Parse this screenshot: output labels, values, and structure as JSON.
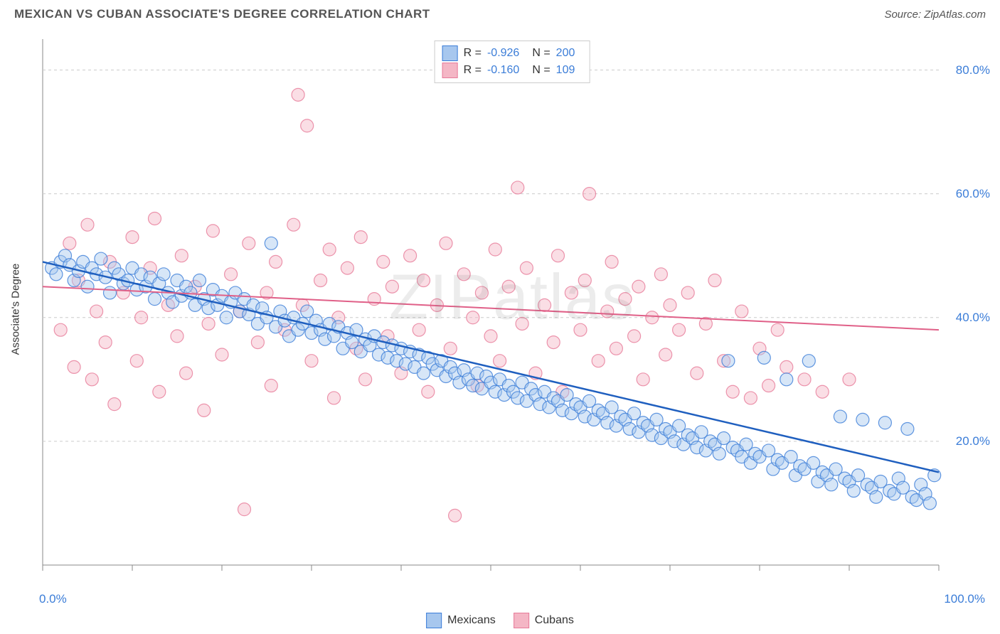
{
  "header": {
    "title": "MEXICAN VS CUBAN ASSOCIATE'S DEGREE CORRELATION CHART",
    "source": "Source: ZipAtlas.com"
  },
  "chart": {
    "type": "scatter",
    "ylabel": "Associate's Degree",
    "watermark": "ZIPatlas",
    "background_color": "#ffffff",
    "grid_color": "#cccccc",
    "axis_color": "#888888",
    "tick_label_color": "#3b7dd8",
    "xlim": [
      0,
      100
    ],
    "ylim": [
      0,
      85
    ],
    "yticks": [
      20,
      40,
      60,
      80
    ],
    "ytick_labels": [
      "20.0%",
      "40.0%",
      "60.0%",
      "80.0%"
    ],
    "xticks": [
      0,
      10,
      20,
      30,
      40,
      50,
      60,
      70,
      80,
      90,
      100
    ],
    "xaxis_labels": {
      "left": "0.0%",
      "right": "100.0%"
    },
    "marker_radius": 9,
    "marker_opacity": 0.45,
    "series": [
      {
        "name": "Mexicans",
        "fill_color": "#a7c7ee",
        "stroke_color": "#3b7dd8",
        "line_color": "#1f5fbf",
        "line_width": 2.5,
        "R": "-0.926",
        "N": "200",
        "trend": {
          "x1": 0,
          "y1": 49,
          "x2": 100,
          "y2": 15
        },
        "points": [
          [
            1,
            48
          ],
          [
            1.5,
            47
          ],
          [
            2,
            49
          ],
          [
            2.5,
            50
          ],
          [
            3,
            48.5
          ],
          [
            3.5,
            46
          ],
          [
            4,
            47.5
          ],
          [
            4.5,
            49
          ],
          [
            5,
            45
          ],
          [
            5.5,
            48
          ],
          [
            6,
            47
          ],
          [
            6.5,
            49.5
          ],
          [
            7,
            46.5
          ],
          [
            7.5,
            44
          ],
          [
            8,
            48
          ],
          [
            8.5,
            47
          ],
          [
            9,
            45.5
          ],
          [
            9.5,
            46
          ],
          [
            10,
            48
          ],
          [
            10.5,
            44.5
          ],
          [
            11,
            47
          ],
          [
            11.5,
            45
          ],
          [
            12,
            46.5
          ],
          [
            12.5,
            43
          ],
          [
            13,
            45.5
          ],
          [
            13.5,
            47
          ],
          [
            14,
            44
          ],
          [
            14.5,
            42.5
          ],
          [
            15,
            46
          ],
          [
            15.5,
            43.5
          ],
          [
            16,
            45
          ],
          [
            16.5,
            44
          ],
          [
            17,
            42
          ],
          [
            17.5,
            46
          ],
          [
            18,
            43
          ],
          [
            18.5,
            41.5
          ],
          [
            19,
            44.5
          ],
          [
            19.5,
            42
          ],
          [
            20,
            43.5
          ],
          [
            20.5,
            40
          ],
          [
            21,
            42.5
          ],
          [
            21.5,
            44
          ],
          [
            22,
            41
          ],
          [
            22.5,
            43
          ],
          [
            23,
            40.5
          ],
          [
            23.5,
            42
          ],
          [
            24,
            39
          ],
          [
            24.5,
            41.5
          ],
          [
            25,
            40
          ],
          [
            25.5,
            52
          ],
          [
            26,
            38.5
          ],
          [
            26.5,
            41
          ],
          [
            27,
            39.5
          ],
          [
            27.5,
            37
          ],
          [
            28,
            40
          ],
          [
            28.5,
            38
          ],
          [
            29,
            39
          ],
          [
            29.5,
            41
          ],
          [
            30,
            37.5
          ],
          [
            30.5,
            39.5
          ],
          [
            31,
            38
          ],
          [
            31.5,
            36.5
          ],
          [
            32,
            39
          ],
          [
            32.5,
            37
          ],
          [
            33,
            38.5
          ],
          [
            33.5,
            35
          ],
          [
            34,
            37.5
          ],
          [
            34.5,
            36
          ],
          [
            35,
            38
          ],
          [
            35.5,
            34.5
          ],
          [
            36,
            36.5
          ],
          [
            36.5,
            35.5
          ],
          [
            37,
            37
          ],
          [
            37.5,
            34
          ],
          [
            38,
            36
          ],
          [
            38.5,
            33.5
          ],
          [
            39,
            35.5
          ],
          [
            39.5,
            33
          ],
          [
            40,
            35
          ],
          [
            40.5,
            32.5
          ],
          [
            41,
            34.5
          ],
          [
            41.5,
            32
          ],
          [
            42,
            34
          ],
          [
            42.5,
            31
          ],
          [
            43,
            33.5
          ],
          [
            43.5,
            32.5
          ],
          [
            44,
            31.5
          ],
          [
            44.5,
            33
          ],
          [
            45,
            30.5
          ],
          [
            45.5,
            32
          ],
          [
            46,
            31
          ],
          [
            46.5,
            29.5
          ],
          [
            47,
            31.5
          ],
          [
            47.5,
            30
          ],
          [
            48,
            29
          ],
          [
            48.5,
            31
          ],
          [
            49,
            28.5
          ],
          [
            49.5,
            30.5
          ],
          [
            50,
            29.5
          ],
          [
            50.5,
            28
          ],
          [
            51,
            30
          ],
          [
            51.5,
            27.5
          ],
          [
            52,
            29
          ],
          [
            52.5,
            28
          ],
          [
            53,
            27
          ],
          [
            53.5,
            29.5
          ],
          [
            54,
            26.5
          ],
          [
            54.5,
            28.5
          ],
          [
            55,
            27.5
          ],
          [
            55.5,
            26
          ],
          [
            56,
            28
          ],
          [
            56.5,
            25.5
          ],
          [
            57,
            27
          ],
          [
            57.5,
            26.5
          ],
          [
            58,
            25
          ],
          [
            58.5,
            27.5
          ],
          [
            59,
            24.5
          ],
          [
            59.5,
            26
          ],
          [
            60,
            25.5
          ],
          [
            60.5,
            24
          ],
          [
            61,
            26.5
          ],
          [
            61.5,
            23.5
          ],
          [
            62,
            25
          ],
          [
            62.5,
            24.5
          ],
          [
            63,
            23
          ],
          [
            63.5,
            25.5
          ],
          [
            64,
            22.5
          ],
          [
            64.5,
            24
          ],
          [
            65,
            23.5
          ],
          [
            65.5,
            22
          ],
          [
            66,
            24.5
          ],
          [
            66.5,
            21.5
          ],
          [
            67,
            23
          ],
          [
            67.5,
            22.5
          ],
          [
            68,
            21
          ],
          [
            68.5,
            23.5
          ],
          [
            69,
            20.5
          ],
          [
            69.5,
            22
          ],
          [
            70,
            21.5
          ],
          [
            70.5,
            20
          ],
          [
            71,
            22.5
          ],
          [
            71.5,
            19.5
          ],
          [
            72,
            21
          ],
          [
            72.5,
            20.5
          ],
          [
            73,
            19
          ],
          [
            73.5,
            21.5
          ],
          [
            74,
            18.5
          ],
          [
            74.5,
            20
          ],
          [
            75,
            19.5
          ],
          [
            75.5,
            18
          ],
          [
            76,
            20.5
          ],
          [
            76.5,
            33
          ],
          [
            77,
            19
          ],
          [
            77.5,
            18.5
          ],
          [
            78,
            17.5
          ],
          [
            78.5,
            19.5
          ],
          [
            79,
            16.5
          ],
          [
            79.5,
            18
          ],
          [
            80,
            17.5
          ],
          [
            80.5,
            33.5
          ],
          [
            81,
            18.5
          ],
          [
            81.5,
            15.5
          ],
          [
            82,
            17
          ],
          [
            82.5,
            16.5
          ],
          [
            83,
            30
          ],
          [
            83.5,
            17.5
          ],
          [
            84,
            14.5
          ],
          [
            84.5,
            16
          ],
          [
            85,
            15.5
          ],
          [
            85.5,
            33
          ],
          [
            86,
            16.5
          ],
          [
            86.5,
            13.5
          ],
          [
            87,
            15
          ],
          [
            87.5,
            14.5
          ],
          [
            88,
            13
          ],
          [
            88.5,
            15.5
          ],
          [
            89,
            24
          ],
          [
            89.5,
            14
          ],
          [
            90,
            13.5
          ],
          [
            90.5,
            12
          ],
          [
            91,
            14.5
          ],
          [
            91.5,
            23.5
          ],
          [
            92,
            13
          ],
          [
            92.5,
            12.5
          ],
          [
            93,
            11
          ],
          [
            93.5,
            13.5
          ],
          [
            94,
            23
          ],
          [
            94.5,
            12
          ],
          [
            95,
            11.5
          ],
          [
            95.5,
            14
          ],
          [
            96,
            12.5
          ],
          [
            96.5,
            22
          ],
          [
            97,
            11
          ],
          [
            97.5,
            10.5
          ],
          [
            98,
            13
          ],
          [
            98.5,
            11.5
          ],
          [
            99,
            10
          ],
          [
            99.5,
            14.5
          ]
        ]
      },
      {
        "name": "Cubans",
        "fill_color": "#f4b6c5",
        "stroke_color": "#e77a99",
        "line_color": "#e06088",
        "line_width": 2,
        "R": "-0.160",
        "N": "109",
        "trend": {
          "x1": 0,
          "y1": 45,
          "x2": 100,
          "y2": 38
        },
        "points": [
          [
            2,
            38
          ],
          [
            3,
            52
          ],
          [
            3.5,
            32
          ],
          [
            4,
            46
          ],
          [
            5,
            55
          ],
          [
            5.5,
            30
          ],
          [
            6,
            41
          ],
          [
            7,
            36
          ],
          [
            7.5,
            49
          ],
          [
            8,
            26
          ],
          [
            9,
            44
          ],
          [
            10,
            53
          ],
          [
            10.5,
            33
          ],
          [
            11,
            40
          ],
          [
            12,
            48
          ],
          [
            12.5,
            56
          ],
          [
            13,
            28
          ],
          [
            14,
            42
          ],
          [
            15,
            37
          ],
          [
            15.5,
            50
          ],
          [
            16,
            31
          ],
          [
            17,
            45
          ],
          [
            18,
            25
          ],
          [
            18.5,
            39
          ],
          [
            19,
            54
          ],
          [
            20,
            34
          ],
          [
            21,
            47
          ],
          [
            22,
            41
          ],
          [
            22.5,
            9
          ],
          [
            23,
            52
          ],
          [
            24,
            36
          ],
          [
            25,
            44
          ],
          [
            25.5,
            29
          ],
          [
            26,
            49
          ],
          [
            27,
            38
          ],
          [
            28,
            55
          ],
          [
            28.5,
            76
          ],
          [
            29,
            42
          ],
          [
            29.5,
            71
          ],
          [
            30,
            33
          ],
          [
            31,
            46
          ],
          [
            32,
            51
          ],
          [
            32.5,
            27
          ],
          [
            33,
            40
          ],
          [
            34,
            48
          ],
          [
            35,
            35
          ],
          [
            35.5,
            53
          ],
          [
            36,
            30
          ],
          [
            37,
            43
          ],
          [
            38,
            49
          ],
          [
            38.5,
            37
          ],
          [
            39,
            45
          ],
          [
            40,
            31
          ],
          [
            41,
            50
          ],
          [
            42,
            38
          ],
          [
            42.5,
            46
          ],
          [
            43,
            28
          ],
          [
            44,
            42
          ],
          [
            45,
            52
          ],
          [
            45.5,
            35
          ],
          [
            46,
            8
          ],
          [
            47,
            47
          ],
          [
            48,
            40
          ],
          [
            48.5,
            29
          ],
          [
            49,
            44
          ],
          [
            50,
            37
          ],
          [
            50.5,
            51
          ],
          [
            51,
            33
          ],
          [
            52,
            45
          ],
          [
            53,
            61
          ],
          [
            53.5,
            39
          ],
          [
            54,
            48
          ],
          [
            55,
            31
          ],
          [
            56,
            42
          ],
          [
            57,
            36
          ],
          [
            57.5,
            50
          ],
          [
            58,
            28
          ],
          [
            59,
            44
          ],
          [
            60,
            38
          ],
          [
            60.5,
            46
          ],
          [
            61,
            60
          ],
          [
            62,
            33
          ],
          [
            63,
            41
          ],
          [
            63.5,
            49
          ],
          [
            64,
            35
          ],
          [
            65,
            43
          ],
          [
            66,
            37
          ],
          [
            66.5,
            45
          ],
          [
            67,
            30
          ],
          [
            68,
            40
          ],
          [
            69,
            47
          ],
          [
            69.5,
            34
          ],
          [
            70,
            42
          ],
          [
            71,
            38
          ],
          [
            72,
            44
          ],
          [
            73,
            31
          ],
          [
            74,
            39
          ],
          [
            75,
            46
          ],
          [
            76,
            33
          ],
          [
            77,
            28
          ],
          [
            78,
            41
          ],
          [
            79,
            27
          ],
          [
            80,
            35
          ],
          [
            81,
            29
          ],
          [
            82,
            38
          ],
          [
            83,
            32
          ],
          [
            85,
            30
          ],
          [
            87,
            28
          ],
          [
            90,
            30
          ]
        ]
      }
    ],
    "legend": {
      "items": [
        {
          "label": "Mexicans",
          "fill": "#a7c7ee",
          "stroke": "#3b7dd8"
        },
        {
          "label": "Cubans",
          "fill": "#f4b6c5",
          "stroke": "#e77a99"
        }
      ]
    }
  }
}
